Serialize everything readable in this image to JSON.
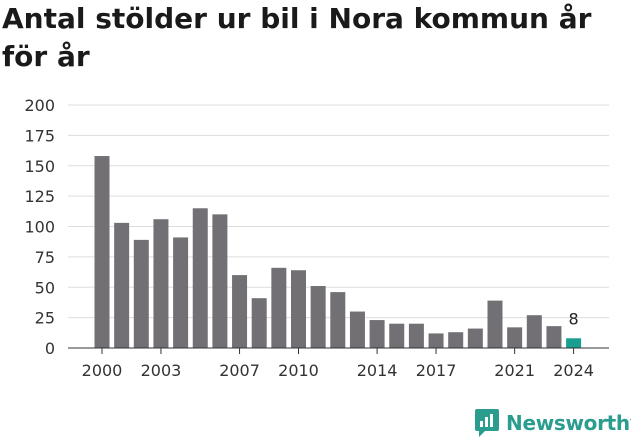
{
  "title": "Antal stölder ur bil i Nora kommun år för år",
  "brand": {
    "name": "Newsworthy",
    "icon": "newsworthy-logo-icon",
    "color": "#2a9d8f"
  },
  "chart_data": {
    "type": "bar",
    "title": "Antal stölder ur bil i Nora kommun år för år",
    "xlabel": "",
    "ylabel": "",
    "ylim": [
      0,
      200
    ],
    "yticks": [
      0,
      25,
      50,
      75,
      100,
      125,
      150,
      175,
      200
    ],
    "xtick_labels": [
      "2000",
      "2003",
      "2007",
      "2010",
      "2014",
      "2017",
      "2021",
      "2024"
    ],
    "grid": true,
    "categories": [
      2000,
      2001,
      2002,
      2003,
      2004,
      2005,
      2006,
      2007,
      2008,
      2009,
      2010,
      2011,
      2012,
      2013,
      2014,
      2015,
      2016,
      2017,
      2018,
      2019,
      2020,
      2021,
      2022,
      2023,
      2024
    ],
    "values": [
      158,
      103,
      89,
      106,
      91,
      115,
      110,
      60,
      41,
      66,
      64,
      51,
      46,
      30,
      23,
      20,
      20,
      12,
      13,
      16,
      39,
      17,
      27,
      18,
      8
    ],
    "bar_color": "#727075",
    "highlight_color": "#1a9e8f",
    "highlight_index": 24,
    "data_labels": [
      {
        "index": 24,
        "text": "8"
      }
    ]
  }
}
